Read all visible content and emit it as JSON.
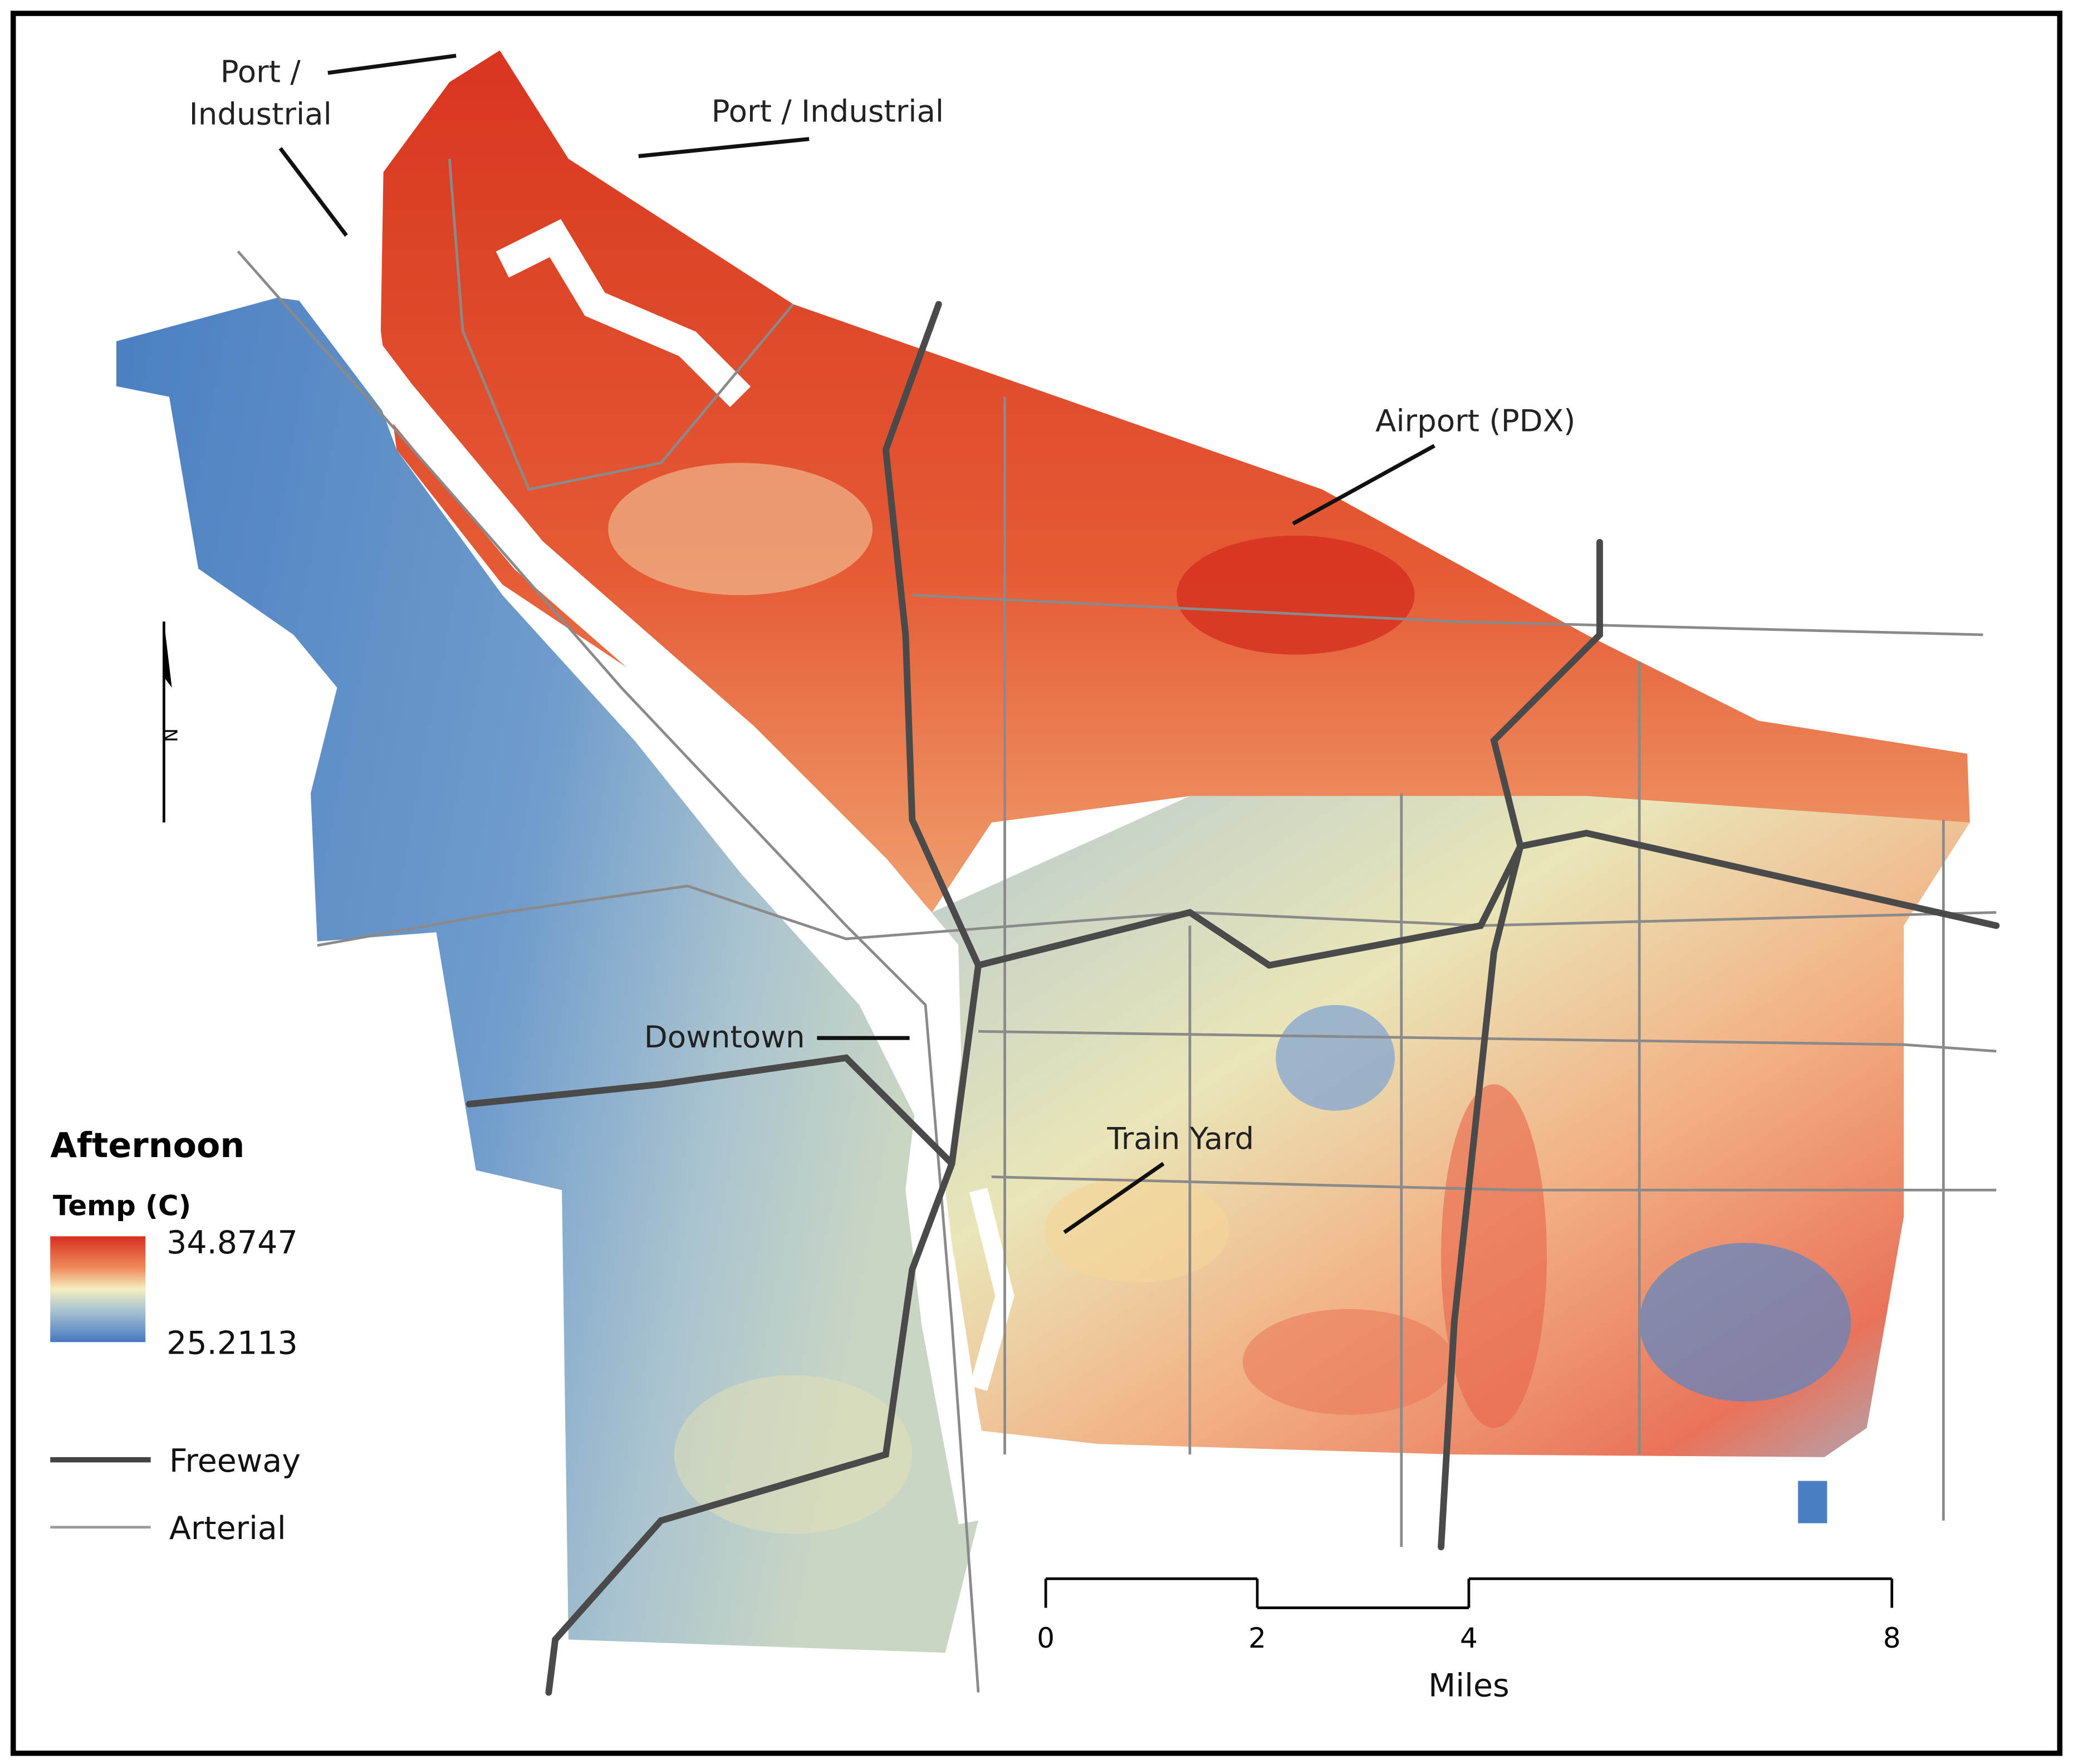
{
  "title": "Afternoon",
  "legend": {
    "title": "Temp (C)",
    "max": 34.8747,
    "min": 25.2113,
    "lines": [
      {
        "label": "Freeway"
      },
      {
        "label": "Arterial"
      }
    ]
  },
  "annotations": [
    {
      "lines": [
        "Port /",
        "Industrial"
      ]
    },
    {
      "lines": [
        "Port / Industrial"
      ]
    },
    {
      "lines": [
        "Airport (PDX)"
      ]
    },
    {
      "lines": [
        "Downtown"
      ]
    },
    {
      "lines": [
        "Train Yard"
      ]
    }
  ],
  "scale_bar": {
    "ticks": [
      0,
      2,
      4,
      8
    ],
    "unit": "Miles"
  },
  "north_arrow": "N"
}
